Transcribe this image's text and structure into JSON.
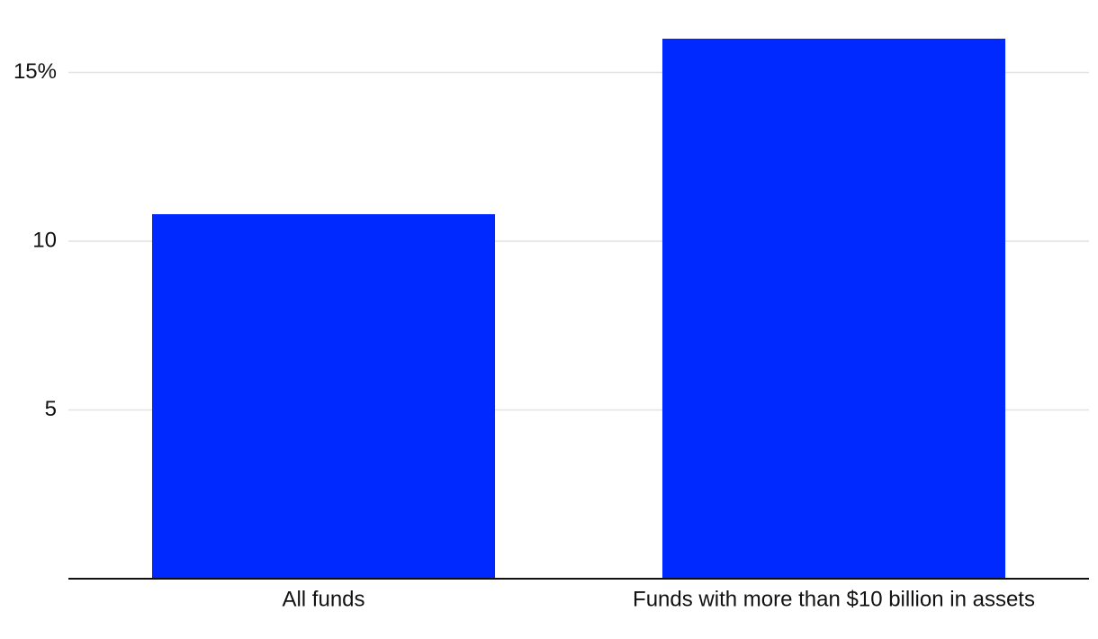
{
  "chart_data": {
    "type": "bar",
    "categories": [
      "All funds",
      "Funds with more than $10 billion in assets"
    ],
    "values": [
      10.8,
      16.0
    ],
    "color": "#0029ff",
    "ylim": [
      0,
      16
    ],
    "yticks": [
      5,
      10,
      {
        "value": 15,
        "label": "15%"
      }
    ],
    "grid": true
  }
}
